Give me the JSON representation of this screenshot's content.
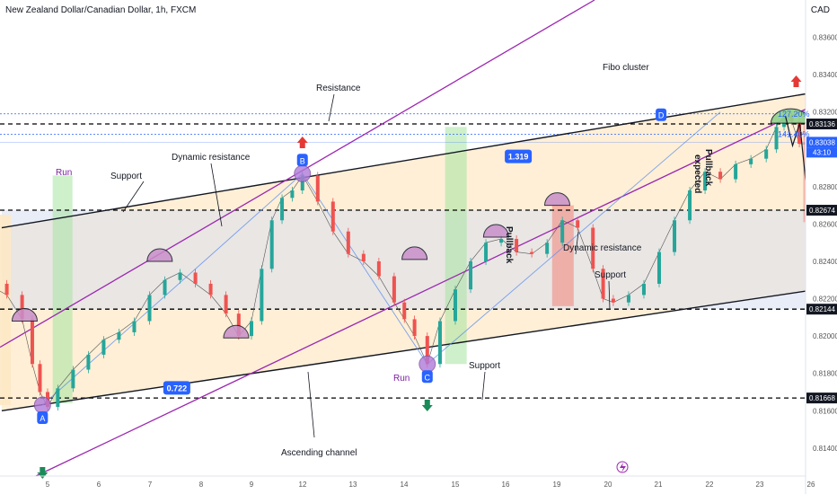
{
  "header": {
    "title": "New Zealand Dollar/Canadian Dollar, 1h, FXCM",
    "currency": "CAD"
  },
  "chart_data": {
    "type": "line",
    "title": "New Zealand Dollar/Canadian Dollar, 1h, FXCM",
    "xlabel": "",
    "ylabel": "",
    "ylim": [
      0.8125,
      0.838
    ],
    "x_ticks": [
      {
        "label": "5",
        "day": 5
      },
      {
        "label": "6",
        "day": 6
      },
      {
        "label": "7",
        "day": 7
      },
      {
        "label": "8",
        "day": 8
      },
      {
        "label": "9",
        "day": 9
      },
      {
        "label": "12",
        "day": 12
      },
      {
        "label": "13",
        "day": 13
      },
      {
        "label": "14",
        "day": 14
      },
      {
        "label": "15",
        "day": 15
      },
      {
        "label": "16",
        "day": 16
      },
      {
        "label": "19",
        "day": 19
      },
      {
        "label": "20",
        "day": 20
      },
      {
        "label": "21",
        "day": 21
      },
      {
        "label": "22",
        "day": 22
      },
      {
        "label": "23",
        "day": 23
      },
      {
        "label": "26",
        "day": 26
      }
    ],
    "y_ticks": [
      "0.81400",
      "0.81600",
      "0.81800",
      "0.82000",
      "0.82200",
      "0.82400",
      "0.82600",
      "0.82800",
      "0.83000",
      "0.83200",
      "0.83400",
      "0.83600"
    ],
    "price_series": {
      "name": "NZDCAD",
      "color": "#26a69a",
      "down_color": "#ef5350",
      "points": [
        [
          3.8,
          0.8228
        ],
        [
          4.2,
          0.8222
        ],
        [
          4.5,
          0.8209
        ],
        [
          4.7,
          0.8185
        ],
        [
          4.85,
          0.817
        ],
        [
          5.0,
          0.8162
        ],
        [
          5.2,
          0.8172
        ],
        [
          5.5,
          0.8182
        ],
        [
          5.8,
          0.819
        ],
        [
          6.1,
          0.8198
        ],
        [
          6.4,
          0.8202
        ],
        [
          6.7,
          0.8208
        ],
        [
          7.0,
          0.8222
        ],
        [
          7.3,
          0.823
        ],
        [
          7.6,
          0.8234
        ],
        [
          7.9,
          0.8228
        ],
        [
          8.2,
          0.8222
        ],
        [
          8.5,
          0.8212
        ],
        [
          8.75,
          0.82
        ],
        [
          9.0,
          0.8208
        ],
        [
          9.2,
          0.8236
        ],
        [
          9.4,
          0.8262
        ],
        [
          9.6,
          0.8274
        ],
        [
          9.8,
          0.8278
        ],
        [
          10.0,
          0.8286
        ],
        [
          10.3,
          0.8272
        ],
        [
          10.6,
          0.8256
        ],
        [
          10.9,
          0.8244
        ],
        [
          11.2,
          0.824
        ],
        [
          11.5,
          0.8232
        ],
        [
          11.8,
          0.8218
        ],
        [
          12.0,
          0.8209
        ],
        [
          12.2,
          0.82
        ],
        [
          12.45,
          0.8185
        ],
        [
          12.7,
          0.8208
        ],
        [
          13.0,
          0.8225
        ],
        [
          13.3,
          0.824
        ],
        [
          13.6,
          0.825
        ],
        [
          13.9,
          0.8252
        ],
        [
          14.2,
          0.8245
        ],
        [
          14.5,
          0.8244
        ],
        [
          14.8,
          0.825
        ],
        [
          15.1,
          0.8262
        ],
        [
          15.4,
          0.8258
        ],
        [
          15.7,
          0.8236
        ],
        [
          15.9,
          0.822
        ],
        [
          16.1,
          0.8218
        ],
        [
          16.4,
          0.8222
        ],
        [
          16.7,
          0.8228
        ],
        [
          17.0,
          0.8245
        ],
        [
          17.3,
          0.8262
        ],
        [
          17.6,
          0.8278
        ],
        [
          17.9,
          0.8288
        ],
        [
          18.2,
          0.8284
        ],
        [
          18.5,
          0.8292
        ],
        [
          18.8,
          0.8295
        ],
        [
          19.1,
          0.83
        ],
        [
          19.3,
          0.8312
        ],
        [
          19.45,
          0.8318
        ],
        [
          19.6,
          0.8315
        ],
        [
          19.75,
          0.8303
        ],
        [
          19.9,
          0.8303
        ]
      ]
    },
    "levels": [
      {
        "name": "resistance-level",
        "value": 0.83136,
        "label": "0.83136"
      },
      {
        "name": "current-price",
        "value": 0.83038,
        "label": "0.83038"
      },
      {
        "name": "mid-level",
        "value": 0.82674,
        "label": "0.82674"
      },
      {
        "name": "support-level",
        "value": 0.82144,
        "label": "0.82144"
      },
      {
        "name": "low-level",
        "value": 0.81668,
        "label": "0.81668"
      }
    ],
    "countdown": "43:10",
    "fib_levels": [
      {
        "label": "127.20%",
        "value": 0.8319
      },
      {
        "label": "141.40%",
        "value": 0.8308
      }
    ],
    "abcd_points": [
      {
        "label": "A",
        "day": 4.9,
        "value": 0.8163
      },
      {
        "label": "B",
        "day": 10.0,
        "value": 0.8287
      },
      {
        "label": "C",
        "day": 12.45,
        "value": 0.8185
      },
      {
        "label": "D",
        "day": 18.2,
        "value": 0.832
      }
    ],
    "ratios": [
      {
        "label": "1.319",
        "day": 14.2,
        "value": 0.8296
      },
      {
        "label": "0.722",
        "day": 7.5,
        "value": 0.8172
      }
    ],
    "annotations": {
      "resistance": "Resistance",
      "support_top": "Support",
      "dynamic_resistance_top": "Dynamic resistance",
      "fibo_cluster": "Fibo cluster",
      "pullback_expected": "Pullback expected",
      "pullback": "Pullback",
      "dynamic_resistance_right": "Dynamic resistance",
      "support_right": "Support",
      "support_bottom": "Support",
      "ascending_channel": "Ascending channel",
      "run_left": "Run",
      "run_right": "Run"
    },
    "colors": {
      "channel_fill": "#fde8c4",
      "range_fill": "#d7dff0",
      "green_zone": "#a5e3a0",
      "red_zone": "#f28b82",
      "purple_line": "#9c27b0",
      "black_line": "#131722",
      "fib_blue": "#2962ff",
      "label_blue": "#2962ff"
    },
    "grid": false,
    "legend": "none"
  }
}
